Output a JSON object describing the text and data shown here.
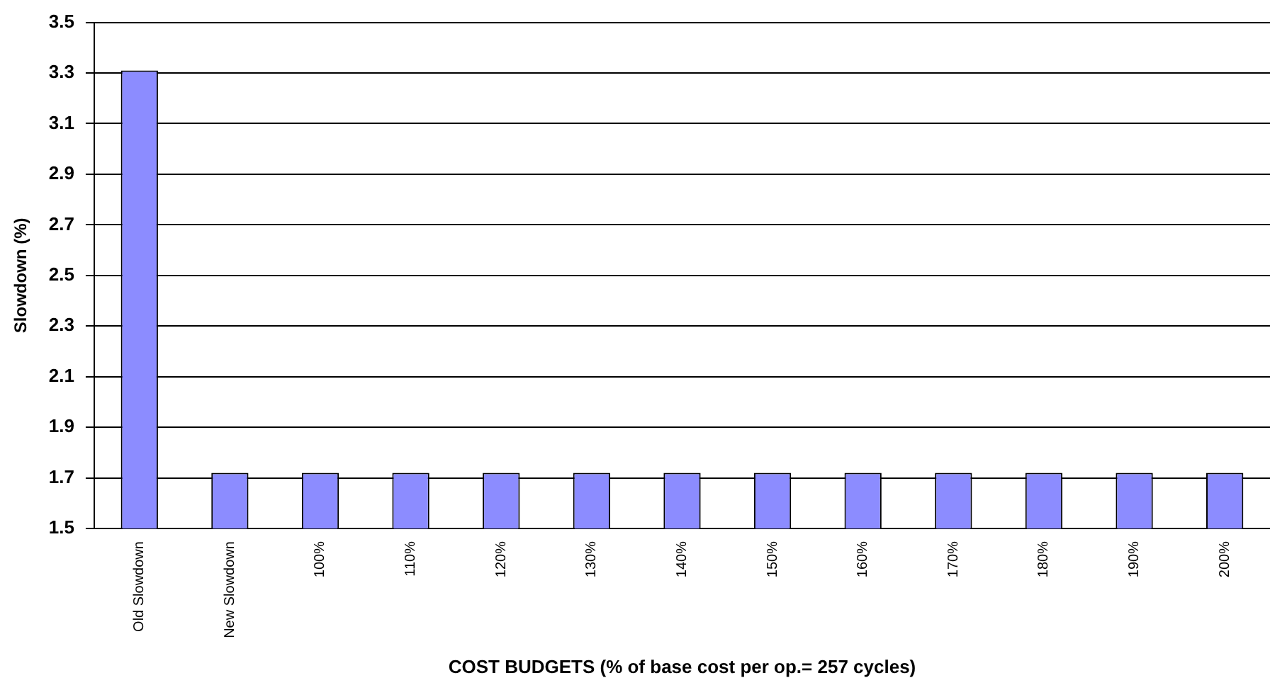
{
  "chart_data": {
    "type": "bar",
    "xlabel": "COST BUDGETS (% of base cost per op.= 257 cycles)",
    "ylabel": "Slowdown (%)",
    "categories": [
      "Old Slowdown",
      "New Slowdown",
      "100%",
      "110%",
      "120%",
      "130%",
      "140%",
      "150%",
      "160%",
      "170%",
      "180%",
      "190%",
      "200%"
    ],
    "values": [
      3.31,
      1.72,
      1.72,
      1.72,
      1.72,
      1.72,
      1.72,
      1.72,
      1.72,
      1.72,
      1.72,
      1.72,
      1.72
    ],
    "color": "#8c8cff",
    "ylim": [
      1.5,
      3.5
    ],
    "yticks": [
      {
        "value": 1.5,
        "label": "1.5"
      },
      {
        "value": 1.7,
        "label": "1.7"
      },
      {
        "value": 1.9,
        "label": "1.9"
      },
      {
        "value": 2.1,
        "label": "2.1"
      },
      {
        "value": 2.3,
        "label": "2.3"
      },
      {
        "value": 2.5,
        "label": "2.5"
      },
      {
        "value": 2.7,
        "label": "2.7"
      },
      {
        "value": 2.9,
        "label": "2.9"
      },
      {
        "value": 3.1,
        "label": "3.1"
      },
      {
        "value": 3.3,
        "label": "3.3"
      },
      {
        "value": 3.5,
        "label": "3.5"
      }
    ],
    "grid": "y",
    "legend": false
  }
}
